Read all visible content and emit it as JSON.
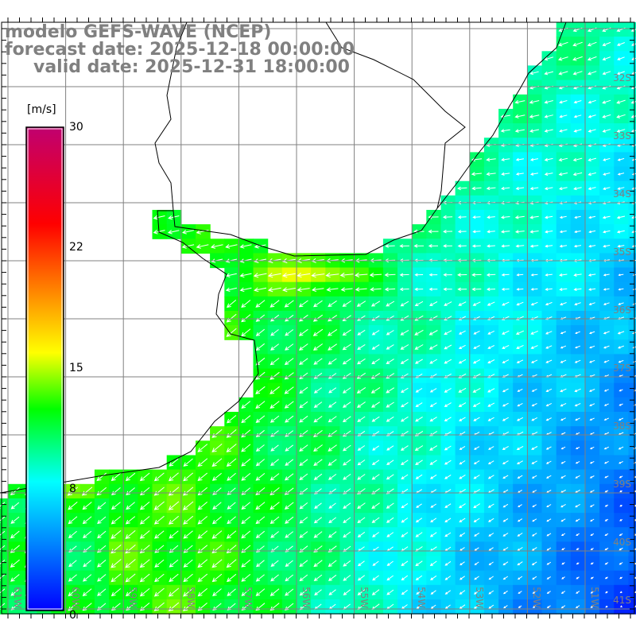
{
  "title": {
    "line1": "modelo GEFS-WAVE (NCEP)",
    "line2": "forecast date: 2025-12-18 00:00:00",
    "line3": "valid date: 2025-12-31 18:00:00"
  },
  "colorbar": {
    "units": "[m/s]",
    "ticks": [
      "30",
      "22",
      "15",
      "8",
      "0"
    ],
    "range": [
      0,
      30
    ],
    "stops": [
      {
        "v": 0,
        "c": "#0000ff"
      },
      {
        "v": 8,
        "c": "#00ffff"
      },
      {
        "v": 12.5,
        "c": "#00ff00"
      },
      {
        "v": 16,
        "c": "#ffff00"
      },
      {
        "v": 20,
        "c": "#ff8000"
      },
      {
        "v": 24,
        "c": "#ff0000"
      },
      {
        "v": 30,
        "c": "#c00070"
      }
    ]
  },
  "lat_labels": [
    "32S",
    "33S",
    "34S",
    "35S",
    "36S",
    "37S",
    "38S",
    "39S",
    "40S",
    "41S"
  ],
  "lon_labels": [
    "61W",
    "60W",
    "59W",
    "58W",
    "57W",
    "56W",
    "55W",
    "54W",
    "53W",
    "52W",
    "51W"
  ],
  "colors": {
    "grid": "#808080",
    "title": "#808080",
    "coast": "#000000",
    "arrow": "#ffffff"
  }
}
